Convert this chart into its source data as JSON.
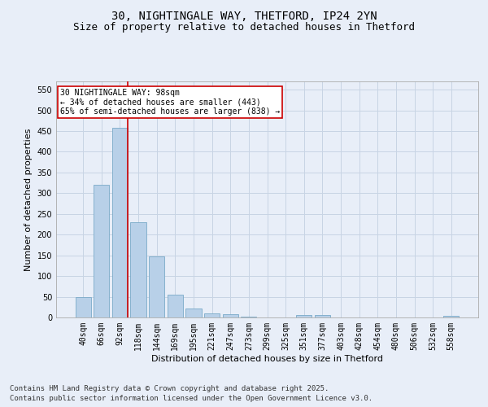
{
  "title_line1": "30, NIGHTINGALE WAY, THETFORD, IP24 2YN",
  "title_line2": "Size of property relative to detached houses in Thetford",
  "xlabel": "Distribution of detached houses by size in Thetford",
  "ylabel": "Number of detached properties",
  "categories": [
    "40sqm",
    "66sqm",
    "92sqm",
    "118sqm",
    "144sqm",
    "169sqm",
    "195sqm",
    "221sqm",
    "247sqm",
    "273sqm",
    "299sqm",
    "325sqm",
    "351sqm",
    "377sqm",
    "403sqm",
    "428sqm",
    "454sqm",
    "480sqm",
    "506sqm",
    "532sqm",
    "558sqm"
  ],
  "values": [
    50,
    320,
    458,
    230,
    148,
    55,
    22,
    10,
    8,
    1,
    0,
    0,
    6,
    5,
    0,
    0,
    0,
    0,
    0,
    0,
    3
  ],
  "bar_color": "#b8d0e8",
  "bar_edge_color": "#7aaac8",
  "bar_edge_width": 0.6,
  "grid_color": "#c8d4e4",
  "background_color": "#e8eef8",
  "red_line_color": "#cc0000",
  "red_line_index": 2,
  "annotation_text": "30 NIGHTINGALE WAY: 98sqm\n← 34% of detached houses are smaller (443)\n65% of semi-detached houses are larger (838) →",
  "annotation_box_color": "#cc0000",
  "ylim": [
    0,
    570
  ],
  "yticks": [
    0,
    50,
    100,
    150,
    200,
    250,
    300,
    350,
    400,
    450,
    500,
    550
  ],
  "footer_line1": "Contains HM Land Registry data © Crown copyright and database right 2025.",
  "footer_line2": "Contains public sector information licensed under the Open Government Licence v3.0.",
  "title_fontsize": 10,
  "subtitle_fontsize": 9,
  "axis_label_fontsize": 8,
  "tick_fontsize": 7,
  "annotation_fontsize": 7,
  "footer_fontsize": 6.5
}
